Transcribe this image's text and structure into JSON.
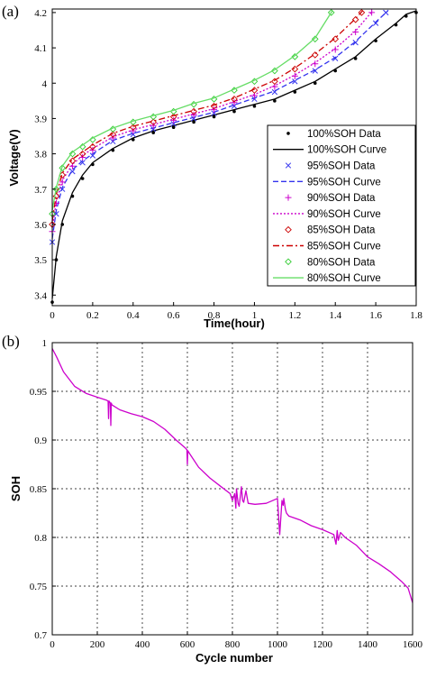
{
  "chart_data": [
    {
      "type": "line",
      "panel_label": "(a)",
      "xlabel": "Time(hour)",
      "ylabel": "Voltage(V)",
      "xlim": [
        0,
        1.8
      ],
      "ylim": [
        3.37,
        4.21
      ],
      "xticks": [
        "0",
        "0.2",
        "0.4",
        "0.6",
        "0.8",
        "1",
        "1.2",
        "1.4",
        "1.6",
        "1.8"
      ],
      "yticks": [
        "3.4",
        "3.5",
        "3.6",
        "3.7",
        "3.8",
        "3.9",
        "4",
        "4.1",
        "4.2"
      ],
      "grid": false,
      "legend_position": "bottom-right",
      "series": [
        {
          "name": "100%SOH Data",
          "kind": "markers",
          "marker": "dot",
          "color": "#000000",
          "x": [
            0,
            0.02,
            0.05,
            0.1,
            0.15,
            0.2,
            0.3,
            0.4,
            0.5,
            0.6,
            0.7,
            0.8,
            0.9,
            1.0,
            1.1,
            1.2,
            1.3,
            1.4,
            1.5,
            1.6,
            1.7,
            1.75,
            1.8
          ],
          "y": [
            3.38,
            3.5,
            3.6,
            3.68,
            3.73,
            3.77,
            3.81,
            3.84,
            3.86,
            3.875,
            3.89,
            3.905,
            3.92,
            3.935,
            3.95,
            3.975,
            4.0,
            4.035,
            4.07,
            4.12,
            4.165,
            4.19,
            4.2
          ]
        },
        {
          "name": "100%SOH Curve",
          "kind": "line",
          "dash": "",
          "color": "#000000",
          "x": [
            0,
            0.02,
            0.05,
            0.1,
            0.15,
            0.2,
            0.3,
            0.4,
            0.5,
            0.6,
            0.7,
            0.8,
            0.9,
            1.0,
            1.1,
            1.2,
            1.3,
            1.4,
            1.5,
            1.6,
            1.7,
            1.75,
            1.8
          ],
          "y": [
            3.39,
            3.51,
            3.61,
            3.69,
            3.74,
            3.775,
            3.815,
            3.845,
            3.865,
            3.88,
            3.895,
            3.91,
            3.925,
            3.94,
            3.955,
            3.98,
            4.005,
            4.04,
            4.075,
            4.125,
            4.17,
            4.195,
            4.205
          ]
        },
        {
          "name": "95%SOH Data",
          "kind": "markers",
          "marker": "x",
          "color": "#3333ee",
          "x": [
            0,
            0.02,
            0.05,
            0.1,
            0.15,
            0.2,
            0.3,
            0.4,
            0.5,
            0.6,
            0.7,
            0.8,
            0.9,
            1.0,
            1.1,
            1.2,
            1.3,
            1.4,
            1.5,
            1.6,
            1.65
          ],
          "y": [
            3.55,
            3.63,
            3.7,
            3.75,
            3.775,
            3.795,
            3.835,
            3.855,
            3.87,
            3.885,
            3.9,
            3.915,
            3.935,
            3.955,
            3.975,
            4.005,
            4.035,
            4.07,
            4.115,
            4.17,
            4.2
          ]
        },
        {
          "name": "95%SOH Curve",
          "kind": "line",
          "dash": "6,3",
          "color": "#3333ee",
          "x": [
            0,
            0.02,
            0.05,
            0.1,
            0.15,
            0.2,
            0.3,
            0.4,
            0.5,
            0.6,
            0.7,
            0.8,
            0.9,
            1.0,
            1.1,
            1.2,
            1.3,
            1.4,
            1.5,
            1.6,
            1.66
          ],
          "y": [
            3.56,
            3.64,
            3.705,
            3.755,
            3.78,
            3.8,
            3.838,
            3.858,
            3.873,
            3.888,
            3.903,
            3.918,
            3.938,
            3.958,
            3.978,
            4.008,
            4.038,
            4.073,
            4.118,
            4.173,
            4.205
          ]
        },
        {
          "name": "90%SOH Data",
          "kind": "markers",
          "marker": "plus",
          "color": "#cc00cc",
          "x": [
            0,
            0.02,
            0.05,
            0.1,
            0.15,
            0.2,
            0.3,
            0.4,
            0.5,
            0.6,
            0.7,
            0.8,
            0.9,
            1.0,
            1.1,
            1.2,
            1.3,
            1.4,
            1.5,
            1.58
          ],
          "y": [
            3.58,
            3.66,
            3.72,
            3.765,
            3.79,
            3.81,
            3.845,
            3.865,
            3.88,
            3.895,
            3.91,
            3.925,
            3.945,
            3.965,
            3.99,
            4.02,
            4.055,
            4.095,
            4.145,
            4.2
          ]
        },
        {
          "name": "90%SOH Curve",
          "kind": "line",
          "dash": "2,2",
          "color": "#cc00cc",
          "x": [
            0,
            0.02,
            0.05,
            0.1,
            0.15,
            0.2,
            0.3,
            0.4,
            0.5,
            0.6,
            0.7,
            0.8,
            0.9,
            1.0,
            1.1,
            1.2,
            1.3,
            1.4,
            1.5,
            1.585
          ],
          "y": [
            3.59,
            3.665,
            3.725,
            3.77,
            3.795,
            3.815,
            3.848,
            3.868,
            3.883,
            3.898,
            3.913,
            3.928,
            3.948,
            3.968,
            3.993,
            4.023,
            4.058,
            4.098,
            4.148,
            4.205
          ]
        },
        {
          "name": "85%SOH Data",
          "kind": "markers",
          "marker": "diamond",
          "color": "#cc0000",
          "x": [
            0,
            0.02,
            0.05,
            0.1,
            0.15,
            0.2,
            0.3,
            0.4,
            0.5,
            0.6,
            0.7,
            0.8,
            0.9,
            1.0,
            1.1,
            1.2,
            1.3,
            1.4,
            1.5,
            1.53
          ],
          "y": [
            3.6,
            3.68,
            3.74,
            3.78,
            3.8,
            3.82,
            3.855,
            3.875,
            3.89,
            3.905,
            3.92,
            3.935,
            3.955,
            3.98,
            4.005,
            4.04,
            4.08,
            4.125,
            4.18,
            4.2
          ]
        },
        {
          "name": "85%SOH Curve",
          "kind": "line",
          "dash": "7,3,2,3",
          "color": "#cc0000",
          "x": [
            0,
            0.02,
            0.05,
            0.1,
            0.15,
            0.2,
            0.3,
            0.4,
            0.5,
            0.6,
            0.7,
            0.8,
            0.9,
            1.0,
            1.1,
            1.2,
            1.3,
            1.4,
            1.5,
            1.535
          ],
          "y": [
            3.61,
            3.685,
            3.745,
            3.785,
            3.805,
            3.825,
            3.858,
            3.878,
            3.893,
            3.908,
            3.923,
            3.938,
            3.958,
            3.983,
            4.008,
            4.043,
            4.083,
            4.128,
            4.183,
            4.205
          ]
        },
        {
          "name": "80%SOH Data",
          "kind": "markers",
          "marker": "diamond",
          "color": "#33cc33",
          "x": [
            0,
            0.02,
            0.05,
            0.1,
            0.15,
            0.2,
            0.3,
            0.4,
            0.5,
            0.6,
            0.7,
            0.8,
            0.9,
            1.0,
            1.1,
            1.2,
            1.3,
            1.38
          ],
          "y": [
            3.63,
            3.7,
            3.76,
            3.8,
            3.82,
            3.84,
            3.87,
            3.89,
            3.905,
            3.92,
            3.94,
            3.955,
            3.98,
            4.005,
            4.035,
            4.075,
            4.125,
            4.2
          ]
        },
        {
          "name": "80%SOH Curve",
          "kind": "line",
          "dash": "",
          "color": "#66dd66",
          "x": [
            0,
            0.02,
            0.05,
            0.1,
            0.15,
            0.2,
            0.3,
            0.4,
            0.5,
            0.6,
            0.7,
            0.8,
            0.9,
            1.0,
            1.1,
            1.2,
            1.3,
            1.385
          ],
          "y": [
            3.64,
            3.705,
            3.765,
            3.805,
            3.825,
            3.845,
            3.873,
            3.893,
            3.908,
            3.923,
            3.943,
            3.958,
            3.983,
            4.008,
            4.038,
            4.078,
            4.128,
            4.205
          ]
        }
      ]
    },
    {
      "type": "line",
      "panel_label": "(b)",
      "xlabel": "Cycle number",
      "ylabel": "SOH",
      "xlim": [
        0,
        1600
      ],
      "ylim": [
        0.7,
        1.0
      ],
      "xticks": [
        "0",
        "200",
        "400",
        "600",
        "800",
        "1000",
        "1200",
        "1400",
        "1600"
      ],
      "yticks": [
        "0.7",
        "0.75",
        "0.8",
        "0.85",
        "0.9",
        "0.95",
        "1"
      ],
      "grid": true,
      "series": [
        {
          "name": "",
          "color": "#cc00cc",
          "x": [
            0,
            20,
            50,
            100,
            150,
            200,
            240,
            248,
            250,
            252,
            258,
            260,
            262,
            265,
            300,
            350,
            400,
            450,
            500,
            550,
            590,
            598,
            600,
            602,
            610,
            650,
            700,
            750,
            790,
            800,
            810,
            815,
            818,
            825,
            830,
            840,
            845,
            850,
            860,
            870,
            900,
            950,
            1000,
            1010,
            1020,
            1025,
            1028,
            1035,
            1040,
            1050,
            1100,
            1150,
            1200,
            1250,
            1260,
            1265,
            1270,
            1280,
            1300,
            1350,
            1400,
            1450,
            1500,
            1550,
            1580,
            1600
          ],
          "y": [
            0.994,
            0.985,
            0.97,
            0.955,
            0.948,
            0.944,
            0.941,
            0.94,
            0.922,
            0.94,
            0.938,
            0.915,
            0.938,
            0.936,
            0.931,
            0.927,
            0.924,
            0.919,
            0.911,
            0.9,
            0.892,
            0.89,
            0.875,
            0.889,
            0.886,
            0.872,
            0.861,
            0.852,
            0.845,
            0.838,
            0.845,
            0.83,
            0.85,
            0.835,
            0.832,
            0.852,
            0.838,
            0.836,
            0.848,
            0.835,
            0.834,
            0.835,
            0.84,
            0.803,
            0.838,
            0.833,
            0.84,
            0.829,
            0.825,
            0.822,
            0.818,
            0.812,
            0.808,
            0.803,
            0.793,
            0.807,
            0.797,
            0.805,
            0.8,
            0.792,
            0.78,
            0.773,
            0.765,
            0.755,
            0.748,
            0.733
          ]
        }
      ]
    }
  ]
}
